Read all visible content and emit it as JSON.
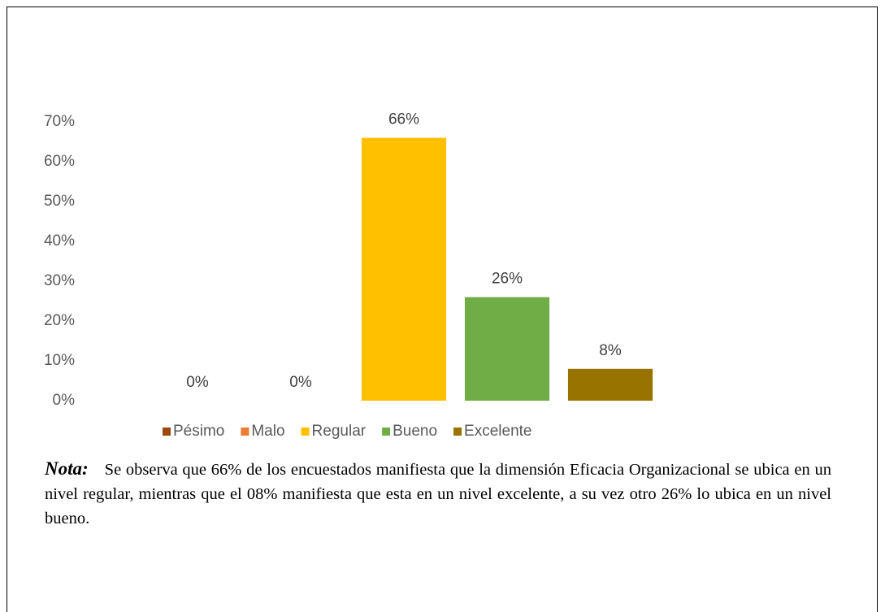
{
  "chart_data": {
    "type": "bar",
    "categories": [
      "Pésimo",
      "Malo",
      "Regular",
      "Bueno",
      "Excelente"
    ],
    "values": [
      0,
      0,
      66,
      26,
      8
    ],
    "value_labels": [
      "0%",
      "0%",
      "66%",
      "26%",
      "8%"
    ],
    "colors": [
      "#9e480e",
      "#ed7d31",
      "#ffc000",
      "#70ad47",
      "#997300"
    ],
    "ylim": [
      0,
      70
    ],
    "yticks": [
      {
        "value": 0,
        "label": "0%"
      },
      {
        "value": 10,
        "label": "10%"
      },
      {
        "value": 20,
        "label": "20%"
      },
      {
        "value": 30,
        "label": "30%"
      },
      {
        "value": 40,
        "label": "40%"
      },
      {
        "value": 50,
        "label": "50%"
      },
      {
        "value": 60,
        "label": "60%"
      },
      {
        "value": 70,
        "label": "70%"
      }
    ],
    "grid": false,
    "legend": "bottom"
  },
  "note": {
    "label": "Nota:",
    "text": "Se observa que 66% de los encuestados manifiesta que la dimensión Eficacia Organizacional se ubica en un nivel regular, mientras que el 08% manifiesta que esta en un nivel excelente, a su vez otro 26% lo ubica en un nivel bueno."
  }
}
